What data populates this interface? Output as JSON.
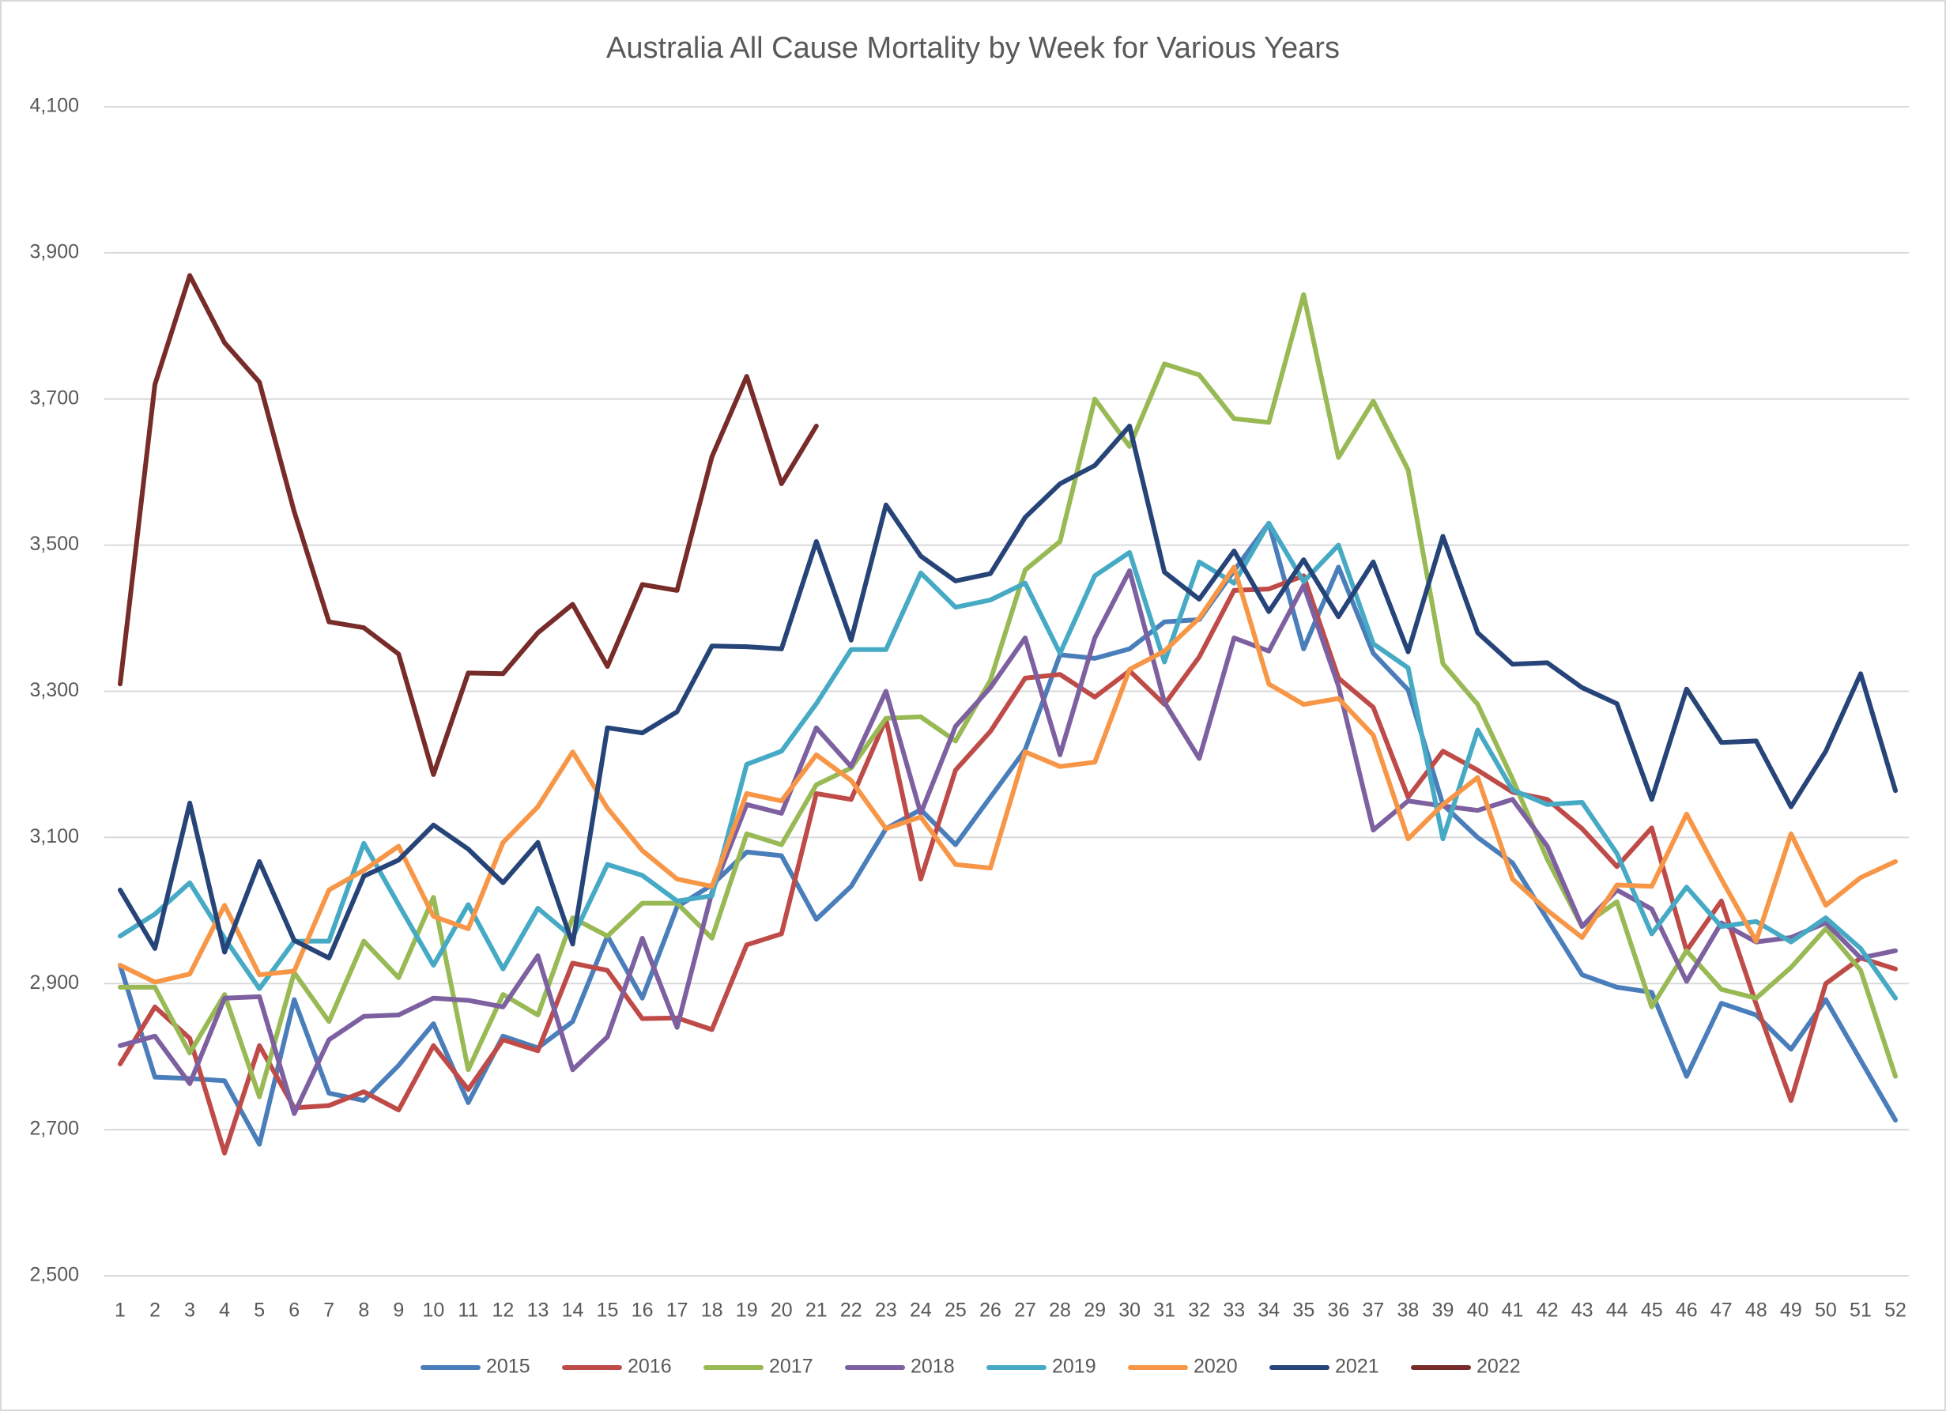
{
  "chart_data": {
    "type": "line",
    "title": "Australia All Cause Mortality by Week for Various Years",
    "categories": [
      1,
      2,
      3,
      4,
      5,
      6,
      7,
      8,
      9,
      10,
      11,
      12,
      13,
      14,
      15,
      16,
      17,
      18,
      19,
      20,
      21,
      22,
      23,
      24,
      25,
      26,
      27,
      28,
      29,
      30,
      31,
      32,
      33,
      34,
      35,
      36,
      37,
      38,
      39,
      40,
      41,
      42,
      43,
      44,
      45,
      46,
      47,
      48,
      49,
      50,
      51,
      52
    ],
    "ylim": [
      2500,
      4100
    ],
    "yticks": [
      {
        "value": 2500,
        "label": "2,500"
      },
      {
        "value": 2700,
        "label": "2,700"
      },
      {
        "value": 2900,
        "label": "2,900"
      },
      {
        "value": 3100,
        "label": "3,100"
      },
      {
        "value": 3300,
        "label": "3,300"
      },
      {
        "value": 3500,
        "label": "3,500"
      },
      {
        "value": 3700,
        "label": "3,700"
      },
      {
        "value": 3900,
        "label": "3,900"
      },
      {
        "value": 4100,
        "label": "4,100"
      }
    ],
    "grid": true,
    "legend": "bottom",
    "series": [
      {
        "name": "2015",
        "color": "#4a7ebb",
        "values": [
          2925,
          2772,
          2770,
          2767,
          2680,
          2878,
          2750,
          2740,
          2788,
          2845,
          2737,
          2828,
          2812,
          2848,
          2965,
          2880,
          3005,
          3035,
          3080,
          3075,
          2988,
          3033,
          3112,
          3138,
          3090,
          3155,
          3220,
          3350,
          3345,
          3358,
          3395,
          3398,
          3465,
          3530,
          3358,
          3470,
          3352,
          3302,
          3145,
          3100,
          3065,
          2988,
          2912,
          2895,
          2888,
          2773,
          2873,
          2857,
          2810,
          2878,
          2795,
          2713
        ]
      },
      {
        "name": "2016",
        "color": "#be4b48",
        "values": [
          2790,
          2868,
          2825,
          2668,
          2815,
          2730,
          2733,
          2752,
          2727,
          2815,
          2755,
          2823,
          2808,
          2928,
          2918,
          2852,
          2853,
          2837,
          2953,
          2968,
          3160,
          3152,
          3262,
          3043,
          3192,
          3245,
          3318,
          3323,
          3292,
          3328,
          3282,
          3347,
          3438,
          3440,
          3458,
          3318,
          3278,
          3155,
          3218,
          3192,
          3162,
          3152,
          3112,
          3060,
          3113,
          2945,
          3013,
          2872,
          2740,
          2900,
          2935,
          2920
        ]
      },
      {
        "name": "2017",
        "color": "#98b954",
        "values": [
          2895,
          2895,
          2805,
          2885,
          2745,
          2915,
          2848,
          2958,
          2908,
          3018,
          2782,
          2885,
          2857,
          2990,
          2965,
          3010,
          3010,
          2962,
          3105,
          3090,
          3172,
          3195,
          3263,
          3265,
          3232,
          3315,
          3466,
          3505,
          3700,
          3635,
          3748,
          3733,
          3673,
          3668,
          3843,
          3620,
          3697,
          3603,
          3338,
          3282,
          3180,
          3070,
          2978,
          3012,
          2868,
          2945,
          2892,
          2880,
          2922,
          2975,
          2918,
          2773
        ]
      },
      {
        "name": "2018",
        "color": "#7d60a0",
        "values": [
          2815,
          2828,
          2763,
          2880,
          2882,
          2722,
          2823,
          2855,
          2857,
          2880,
          2877,
          2868,
          2938,
          2782,
          2827,
          2962,
          2840,
          3025,
          3145,
          3133,
          3250,
          3197,
          3300,
          3133,
          3252,
          3305,
          3373,
          3213,
          3373,
          3465,
          3285,
          3208,
          3373,
          3355,
          3445,
          3307,
          3110,
          3150,
          3143,
          3137,
          3152,
          3088,
          2978,
          3028,
          3002,
          2903,
          2983,
          2957,
          2963,
          2983,
          2935,
          2945
        ]
      },
      {
        "name": "2019",
        "color": "#46aac5",
        "values": [
          2965,
          2995,
          3038,
          2962,
          2893,
          2958,
          2958,
          3092,
          3008,
          2925,
          3008,
          2920,
          3003,
          2963,
          3063,
          3048,
          3013,
          3020,
          3200,
          3218,
          3283,
          3357,
          3357,
          3462,
          3415,
          3425,
          3448,
          3352,
          3458,
          3490,
          3340,
          3477,
          3448,
          3530,
          3450,
          3500,
          3365,
          3332,
          3098,
          3247,
          3165,
          3145,
          3148,
          3078,
          2968,
          3032,
          2978,
          2985,
          2957,
          2990,
          2948,
          2880
        ]
      },
      {
        "name": "2020",
        "color": "#f79646",
        "values": [
          2925,
          2902,
          2913,
          3007,
          2912,
          2917,
          3028,
          3055,
          3088,
          2992,
          2975,
          3093,
          3142,
          3217,
          3140,
          3082,
          3043,
          3033,
          3160,
          3150,
          3213,
          3178,
          3112,
          3128,
          3063,
          3058,
          3217,
          3197,
          3203,
          3330,
          3355,
          3400,
          3470,
          3310,
          3282,
          3290,
          3240,
          3098,
          3145,
          3182,
          3043,
          3000,
          2963,
          3035,
          3033,
          3132,
          3043,
          2958,
          3105,
          3007,
          3045,
          3067
        ]
      },
      {
        "name": "2021",
        "color": "#264478",
        "values": [
          3028,
          2948,
          3147,
          2943,
          3067,
          2959,
          2935,
          3047,
          3069,
          3117,
          3084,
          3038,
          3093,
          2954,
          3250,
          3243,
          3272,
          3362,
          3361,
          3358,
          3505,
          3370,
          3555,
          3485,
          3451,
          3461,
          3538,
          3584,
          3609,
          3663,
          3463,
          3426,
          3492,
          3409,
          3480,
          3402,
          3477,
          3354,
          3512,
          3380,
          3337,
          3339,
          3305,
          3283,
          3152,
          3303,
          3230,
          3232,
          3142,
          3218,
          3324,
          3164
        ]
      },
      {
        "name": "2022",
        "color": "#772c2a",
        "values": [
          3310,
          3720,
          3869,
          3777,
          3723,
          3546,
          3395,
          3387,
          3351,
          3186,
          3325,
          3324,
          3380,
          3419,
          3334,
          3446,
          3438,
          3621,
          3731,
          3584,
          3663,
          null,
          null,
          null,
          null,
          null,
          null,
          null,
          null,
          null,
          null,
          null,
          null,
          null,
          null,
          null,
          null,
          null,
          null,
          null,
          null,
          null,
          null,
          null,
          null,
          null,
          null,
          null,
          null,
          null,
          null,
          null
        ]
      }
    ]
  }
}
